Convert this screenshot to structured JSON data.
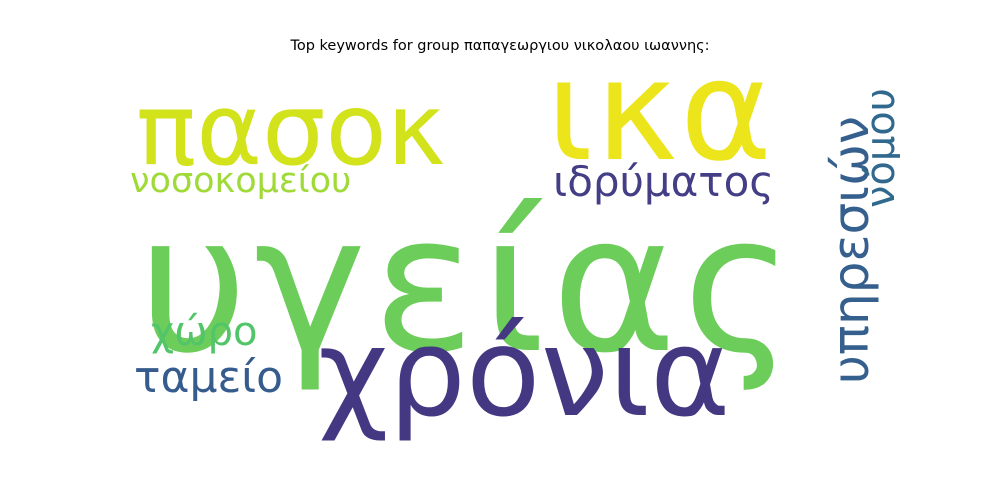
{
  "title": "Top keywords for group παπαγεωργιου νικολαου ιωαννης:",
  "words": [
    {
      "text": "υγείας",
      "color": "#6ccd5a",
      "orientation": "horizontal"
    },
    {
      "text": "ικα",
      "color": "#ede51b",
      "orientation": "horizontal"
    },
    {
      "text": "πασοκ",
      "color": "#d2e21b",
      "orientation": "horizontal"
    },
    {
      "text": "χρόνια",
      "color": "#453882",
      "orientation": "horizontal"
    },
    {
      "text": "υπηρεσιών",
      "color": "#355f8d",
      "orientation": "vertical"
    },
    {
      "text": "ιδρύματος",
      "color": "#433e85",
      "orientation": "horizontal"
    },
    {
      "text": "νοσοκομείου",
      "color": "#a0da39",
      "orientation": "horizontal"
    },
    {
      "text": "ταμείο",
      "color": "#365c8d",
      "orientation": "horizontal"
    },
    {
      "text": "χώρο",
      "color": "#52c569",
      "orientation": "horizontal"
    },
    {
      "text": "νόμου",
      "color": "#31688e",
      "orientation": "vertical"
    }
  ]
}
